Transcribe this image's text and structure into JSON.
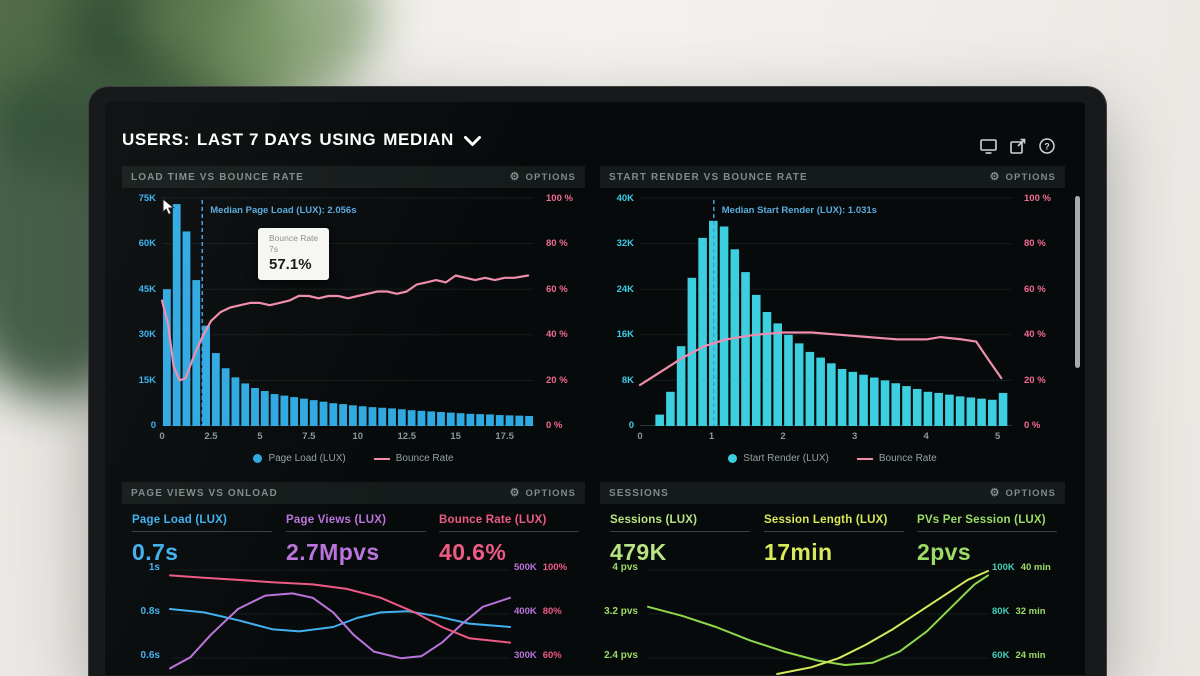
{
  "scene": {
    "title": {
      "users": "USERS:",
      "range": "LAST 7 DAYS",
      "using": "USING",
      "metric": "MEDIAN"
    }
  },
  "chart_data": [
    {
      "id": "load-time-vs-bounce-rate",
      "type": "histogram",
      "title": "LOAD TIME VS BOUNCE RATE",
      "options_label": "OPTIONS",
      "left_axis_labels": [
        "75K",
        "60K",
        "45K",
        "30K",
        "15K",
        "0"
      ],
      "right_axis_labels": [
        "100 %",
        "80 %",
        "60 %",
        "40 %",
        "20 %",
        "0 %"
      ],
      "left_max": 75,
      "right_max": 100,
      "x_ticks": [
        "0",
        "2.5",
        "5",
        "7.5",
        "10",
        "12.5",
        "15",
        "17.5"
      ],
      "x_max": 19,
      "bars": {
        "start": 0,
        "step": 0.5,
        "unit": "K users",
        "values": [
          45,
          73,
          64,
          48,
          33,
          24,
          19,
          16,
          14,
          12.5,
          11.5,
          10.5,
          10,
          9.5,
          9,
          8.5,
          8,
          7.5,
          7.2,
          6.8,
          6.5,
          6.2,
          6,
          5.8,
          5.5,
          5.2,
          5,
          4.8,
          4.6,
          4.4,
          4.2,
          4,
          3.9,
          3.8,
          3.6,
          3.5,
          3.4,
          3.3
        ]
      },
      "line": {
        "name": "Bounce Rate",
        "unit": "%",
        "points": [
          [
            0,
            55
          ],
          [
            0.3,
            45
          ],
          [
            0.6,
            26
          ],
          [
            0.9,
            20
          ],
          [
            1.2,
            21
          ],
          [
            1.6,
            30
          ],
          [
            2,
            38
          ],
          [
            2.5,
            46
          ],
          [
            3,
            50
          ],
          [
            3.5,
            52
          ],
          [
            4,
            53
          ],
          [
            4.5,
            54
          ],
          [
            5,
            54
          ],
          [
            5.5,
            53
          ],
          [
            6,
            54
          ],
          [
            6.5,
            55
          ],
          [
            7,
            57.1
          ],
          [
            7.5,
            57
          ],
          [
            8,
            56
          ],
          [
            8.5,
            57
          ],
          [
            9,
            57
          ],
          [
            9.5,
            56
          ],
          [
            10,
            57
          ],
          [
            10.5,
            58
          ],
          [
            11,
            59
          ],
          [
            11.5,
            59
          ],
          [
            12,
            58
          ],
          [
            12.5,
            59
          ],
          [
            13,
            62
          ],
          [
            13.5,
            63
          ],
          [
            14,
            64
          ],
          [
            14.5,
            63
          ],
          [
            15,
            66
          ],
          [
            15.5,
            65
          ],
          [
            16,
            64
          ],
          [
            16.5,
            65
          ],
          [
            17,
            64
          ],
          [
            17.5,
            65
          ],
          [
            18,
            65
          ],
          [
            18.7,
            66
          ]
        ]
      },
      "median": {
        "x": 2.056,
        "label": "Median Page Load (LUX): 2.056s"
      },
      "tooltip": {
        "metric": "Bounce Rate",
        "time": "7s",
        "value": "57.1%"
      },
      "legend": [
        {
          "label": "Page Load (LUX)",
          "swatch": "dot",
          "color": "#2fa9e1"
        },
        {
          "label": "Bounce Rate",
          "swatch": "line",
          "color": "#f08cae"
        }
      ],
      "colors": {
        "bar": "#2fa9e1",
        "line": "#f08cae",
        "median": "#4a9ad8",
        "left_axis": "#3ab0f0",
        "right_axis": "#f06a96",
        "median_label": "#5aaade"
      }
    },
    {
      "id": "start-render-vs-bounce-rate",
      "type": "histogram",
      "title": "START RENDER VS BOUNCE RATE",
      "options_label": "OPTIONS",
      "left_axis_labels": [
        "40K",
        "32K",
        "24K",
        "16K",
        "8K",
        "0"
      ],
      "right_axis_labels": [
        "100 %",
        "80 %",
        "60 %",
        "40 %",
        "20 %",
        "0 %"
      ],
      "left_max": 40,
      "right_max": 100,
      "x_ticks": [
        "0",
        "1",
        "2",
        "3",
        "4",
        "5"
      ],
      "x_max": 5.2,
      "bars": {
        "start": 0.2,
        "step": 0.15,
        "unit": "K users",
        "values": [
          2,
          6,
          14,
          26,
          33,
          36,
          35,
          31,
          27,
          23,
          20,
          18,
          16,
          14.5,
          13,
          12,
          11,
          10,
          9.5,
          9,
          8.5,
          8,
          7.5,
          7,
          6.5,
          6,
          5.8,
          5.5,
          5.2,
          5,
          4.8,
          4.6,
          5.8
        ]
      },
      "line": {
        "name": "Bounce Rate",
        "unit": "%",
        "points": [
          [
            0,
            18
          ],
          [
            0.3,
            24
          ],
          [
            0.6,
            30
          ],
          [
            0.9,
            35
          ],
          [
            1.2,
            38
          ],
          [
            1.6,
            40
          ],
          [
            2,
            41
          ],
          [
            2.4,
            41
          ],
          [
            2.8,
            40
          ],
          [
            3.2,
            39
          ],
          [
            3.6,
            38
          ],
          [
            4,
            38
          ],
          [
            4.2,
            39
          ],
          [
            4.5,
            38
          ],
          [
            4.7,
            37
          ],
          [
            4.85,
            30
          ],
          [
            5.05,
            21
          ]
        ]
      },
      "median": {
        "x": 1.031,
        "label": "Median Start Render (LUX): 1.031s"
      },
      "legend": [
        {
          "label": "Start Render (LUX)",
          "swatch": "dot",
          "color": "#3ccfe0"
        },
        {
          "label": "Bounce Rate",
          "swatch": "line",
          "color": "#f08cae"
        }
      ],
      "colors": {
        "bar": "#3ccfe0",
        "line": "#f08cae",
        "median": "#4a9ad8",
        "left_axis": "#3ecde8",
        "right_axis": "#f06a96",
        "median_label": "#5aaade"
      }
    },
    {
      "id": "page-views-vs-onload",
      "type": "lines",
      "title": "PAGE VIEWS VS ONLOAD",
      "options_label": "OPTIONS",
      "metrics": [
        {
          "label": "Page Load (LUX)",
          "value": "0.7s",
          "color": "#41b1f0"
        },
        {
          "label": "Page Views (LUX)",
          "value": "2.7Mpvs",
          "color": "#bb74dd"
        },
        {
          "label": "Bounce Rate (LUX)",
          "value": "40.6%",
          "color": "#ee5a85"
        }
      ],
      "left_axis_labels": [
        "1s",
        "0.8s",
        "0.6s"
      ],
      "left_axis_color": "#41b1f0",
      "right_axis": {
        "k_color": "#bb74dd",
        "v_color": "#ee5a85",
        "rows": [
          {
            "k": "500K",
            "v": "100%"
          },
          {
            "k": "400K",
            "v": "80%"
          },
          {
            "k": "300K",
            "v": "60%"
          }
        ]
      },
      "lines": [
        {
          "name": "Page Load",
          "color": "#41b1f0",
          "points": [
            [
              0,
              42
            ],
            [
              10,
              45
            ],
            [
              20,
              52
            ],
            [
              30,
              60
            ],
            [
              38,
              62
            ],
            [
              48,
              58
            ],
            [
              55,
              50
            ],
            [
              62,
              45
            ],
            [
              70,
              44
            ],
            [
              78,
              48
            ],
            [
              88,
              55
            ],
            [
              100,
              58
            ]
          ]
        },
        {
          "name": "Page Views",
          "color": "#bb74dd",
          "points": [
            [
              0,
              95
            ],
            [
              6,
              85
            ],
            [
              12,
              65
            ],
            [
              20,
              42
            ],
            [
              28,
              30
            ],
            [
              36,
              28
            ],
            [
              42,
              32
            ],
            [
              48,
              45
            ],
            [
              54,
              65
            ],
            [
              60,
              80
            ],
            [
              68,
              86
            ],
            [
              74,
              84
            ],
            [
              80,
              72
            ],
            [
              86,
              55
            ],
            [
              92,
              40
            ],
            [
              100,
              32
            ]
          ]
        },
        {
          "name": "Bounce Rate",
          "color": "#ee5a85",
          "points": [
            [
              0,
              12
            ],
            [
              10,
              14
            ],
            [
              20,
              16
            ],
            [
              30,
              18
            ],
            [
              42,
              20
            ],
            [
              52,
              24
            ],
            [
              62,
              32
            ],
            [
              72,
              45
            ],
            [
              80,
              58
            ],
            [
              88,
              68
            ],
            [
              100,
              72
            ]
          ]
        }
      ]
    },
    {
      "id": "sessions",
      "type": "lines",
      "title": "SESSIONS",
      "options_label": "OPTIONS",
      "metrics": [
        {
          "label": "Sessions (LUX)",
          "value": "479K",
          "color": "#b9e483"
        },
        {
          "label": "Session Length (LUX)",
          "value": "17min",
          "color": "#d9e95c"
        },
        {
          "label": "PVs Per Session (LUX)",
          "value": "2pvs",
          "color": "#9bdc67"
        }
      ],
      "left_axis_labels": [
        "4 pvs",
        "3.2 pvs",
        "2.4 pvs"
      ],
      "left_axis_color": "#9bdc67",
      "right_axis": {
        "k_color": "#43cdb9",
        "v_color": "#9bdc67",
        "rows": [
          {
            "k": "100K",
            "v": "40 min"
          },
          {
            "k": "80K",
            "v": "32 min"
          },
          {
            "k": "60K",
            "v": "24 min"
          }
        ]
      },
      "lines": [
        {
          "name": "PVs Per Session",
          "color": "#8fd84a",
          "points": [
            [
              0,
              40
            ],
            [
              10,
              48
            ],
            [
              20,
              58
            ],
            [
              30,
              70
            ],
            [
              40,
              80
            ],
            [
              50,
              88
            ],
            [
              58,
              92
            ],
            [
              66,
              90
            ],
            [
              74,
              80
            ],
            [
              82,
              62
            ],
            [
              90,
              38
            ],
            [
              96,
              20
            ],
            [
              100,
              12
            ]
          ]
        },
        {
          "name": "Session Length",
          "color": "#d9e95c",
          "points": [
            [
              38,
              100
            ],
            [
              48,
              94
            ],
            [
              56,
              86
            ],
            [
              64,
              74
            ],
            [
              72,
              60
            ],
            [
              80,
              44
            ],
            [
              88,
              28
            ],
            [
              94,
              16
            ],
            [
              100,
              8
            ]
          ]
        }
      ]
    }
  ]
}
